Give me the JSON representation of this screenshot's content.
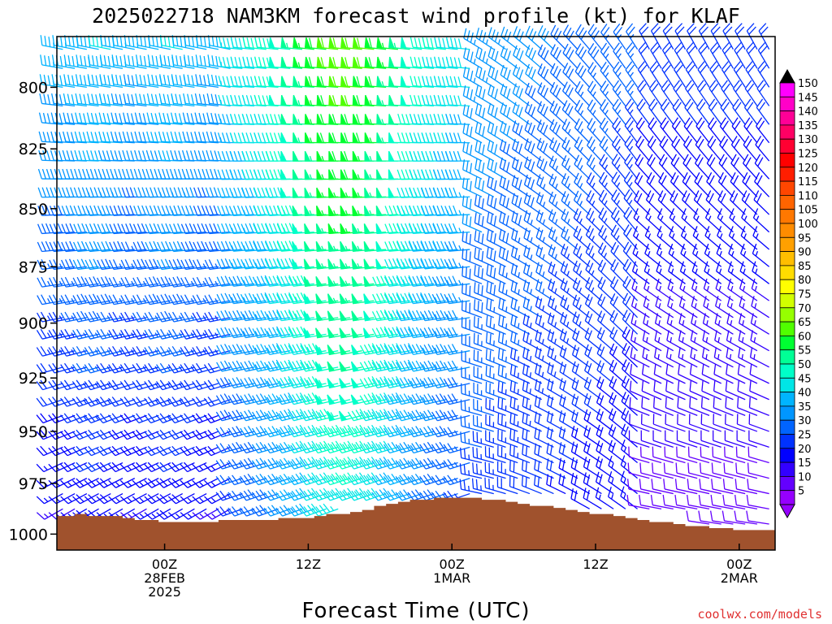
{
  "chart_data": {
    "type": "wind-profile",
    "title": "2025022718 NAM3KM forecast wind profile (kt) for KLAF",
    "xlabel": "Forecast Time (UTC)",
    "ylabel": "",
    "credit": "coolwx.com/models",
    "y_axis": {
      "scale": "pressure",
      "ylim": [
        780,
        1008
      ],
      "ticks": [
        "800",
        "825",
        "850",
        "875",
        "900",
        "925",
        "950",
        "975",
        "1000"
      ]
    },
    "x_axis": {
      "range_hours": [
        -9,
        51
      ],
      "ticks": [
        {
          "hour": 0,
          "line1": "00Z",
          "line2": "28FEB",
          "line3": "2025"
        },
        {
          "hour": 12,
          "line1": "12Z",
          "line2": "",
          "line3": ""
        },
        {
          "hour": 24,
          "line1": "00Z",
          "line2": "1MAR",
          "line3": ""
        },
        {
          "hour": 36,
          "line1": "12Z",
          "line2": "",
          "line3": ""
        },
        {
          "hour": 48,
          "line1": "00Z",
          "line2": "2MAR",
          "line3": ""
        }
      ]
    },
    "colorbar": {
      "labels": [
        "150",
        "145",
        "140",
        "135",
        "130",
        "125",
        "120",
        "115",
        "110",
        "105",
        "100",
        "95",
        "90",
        "85",
        "80",
        "75",
        "70",
        "65",
        "60",
        "55",
        "50",
        "45",
        "40",
        "35",
        "30",
        "25",
        "20",
        "15",
        "10",
        "5"
      ],
      "colors": [
        "#ff00ff",
        "#ff00c8",
        "#ff0096",
        "#ff0064",
        "#ff0032",
        "#ff0000",
        "#ff1e00",
        "#ff4600",
        "#ff6400",
        "#ff7800",
        "#ff8c00",
        "#ffa000",
        "#ffbe00",
        "#ffdc00",
        "#ffff00",
        "#d2ff00",
        "#96ff00",
        "#50ff00",
        "#00ff32",
        "#00ff96",
        "#00ffc8",
        "#00e6e6",
        "#00b4ff",
        "#0096ff",
        "#0064ff",
        "#0032ff",
        "#0000ff",
        "#3200ff",
        "#6400ff",
        "#9600ff"
      ]
    },
    "terrain": {
      "color": "#a0522d",
      "hours": [
        -9,
        -8,
        -7,
        -6,
        -5,
        -4,
        -3,
        -2,
        -1,
        0,
        1,
        2,
        3,
        4,
        5,
        6,
        7,
        8,
        9,
        10,
        11,
        12,
        13,
        14,
        15,
        16,
        17,
        18,
        19,
        20,
        21,
        22,
        23,
        24,
        25,
        26,
        27,
        28,
        29,
        30,
        31,
        32,
        33,
        34,
        35,
        36,
        37,
        38,
        39,
        40,
        41,
        42,
        43,
        44,
        45,
        46,
        47,
        48,
        49,
        50,
        51
      ],
      "surface_pressure_hpa": [
        991,
        991,
        990,
        991,
        991,
        991,
        992,
        993,
        993,
        994,
        994,
        994,
        994,
        994,
        993,
        993,
        993,
        993,
        993,
        992,
        992,
        992,
        991,
        990,
        990,
        989,
        988,
        986,
        985,
        984,
        983,
        983,
        982,
        982,
        982,
        982,
        983,
        983,
        984,
        985,
        986,
        986,
        987,
        988,
        989,
        990,
        990,
        991,
        992,
        993,
        994,
        994,
        995,
        996,
        996,
        997,
        997,
        998,
        998,
        998,
        998
      ]
    }
  }
}
